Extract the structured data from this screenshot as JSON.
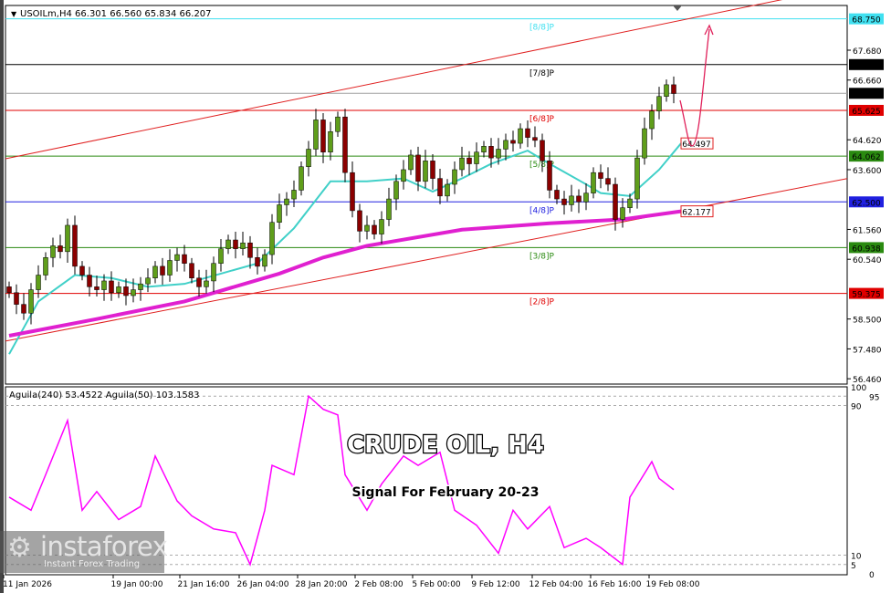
{
  "header": {
    "symbol_info": "USOILm,H4  66.301 66.560 65.834 66.207",
    "indicator_info": "Aguila(240) 53.4522  Aguila(50) 103.1583"
  },
  "overlay": {
    "title": "CRUDE OIL, H4",
    "subtitle": "Signal For February 20-23"
  },
  "watermark": {
    "brand": "instaforex",
    "tagline": "Instant Forex Trading"
  },
  "colors": {
    "bull": "#5f9e1a",
    "bear": "#8b0000",
    "ma_fast": "#40d0c8",
    "ma_slow": "#e020d0",
    "channel": "#e02020",
    "oscillator": "#ff00ff",
    "arrow": "#e0205a"
  },
  "chart_data": [
    {
      "type": "candlestick",
      "symbol": "USOILm",
      "timeframe": "H4",
      "ylim": [
        56.46,
        68.75
      ],
      "price_ticks": [
        "67.680",
        "66.660",
        "64.620",
        "63.600",
        "61.560",
        "60.540",
        "58.500",
        "57.480",
        "56.460"
      ],
      "time_ticks": [
        "11 Jan 2026",
        "19 Jan 00:00",
        "21 Jan 16:00",
        "26 Jan 04:00",
        "28 Jan 20:00",
        "2 Feb 08:00",
        "5 Feb 00:00",
        "9 Feb 12:00",
        "12 Feb 04:00",
        "16 Feb 16:00",
        "19 Feb 08:00"
      ],
      "closes": [
        59.4,
        59.0,
        58.7,
        59.5,
        60.0,
        60.6,
        61.0,
        60.8,
        61.7,
        60.3,
        60.0,
        59.6,
        59.5,
        59.8,
        59.4,
        59.6,
        59.3,
        59.5,
        59.7,
        59.9,
        60.3,
        60.0,
        60.5,
        60.7,
        60.4,
        59.9,
        59.6,
        59.8,
        60.4,
        60.9,
        61.2,
        60.9,
        61.1,
        60.6,
        60.3,
        60.7,
        61.8,
        62.4,
        62.6,
        62.9,
        63.7,
        64.3,
        65.3,
        64.2,
        64.9,
        65.4,
        63.5,
        62.2,
        61.5,
        61.7,
        61.4,
        61.9,
        62.6,
        63.2,
        63.6,
        64.1,
        63.2,
        63.9,
        63.3,
        62.7,
        63.1,
        63.6,
        64.0,
        63.8,
        64.2,
        64.4,
        64.0,
        64.3,
        64.6,
        64.5,
        65.0,
        64.7,
        64.6,
        63.9,
        62.9,
        62.6,
        62.4,
        62.7,
        62.5,
        62.8,
        63.5,
        63.3,
        63.1,
        61.9,
        62.3,
        62.6,
        64.0,
        65.0,
        65.6,
        66.1,
        66.5,
        66.2
      ],
      "current_price": "66.207",
      "murrey_levels": [
        {
          "label": "[8/8]P",
          "value": "68.750",
          "color": "#40e0f0"
        },
        {
          "label": "[7/8]P",
          "value": "67.188",
          "color": "#000000"
        },
        {
          "label": "[6/8]P",
          "value": "65.625",
          "color": "#e00000"
        },
        {
          "label": "[5/8]P",
          "value": "64.062",
          "color": "#2a8a10"
        },
        {
          "label": "[4/8]P",
          "value": "62.500",
          "color": "#2020e0"
        },
        {
          "label": "[3/8]P",
          "value": "60.938",
          "color": "#2a8a10"
        },
        {
          "label": "[2/8]P",
          "value": "59.375",
          "color": "#e00000"
        }
      ],
      "ma_fast": {
        "points": [
          [
            0,
            57.3
          ],
          [
            4,
            59.1
          ],
          [
            9,
            60.0
          ],
          [
            14,
            59.9
          ],
          [
            19,
            59.6
          ],
          [
            24,
            59.7
          ],
          [
            29,
            60.05
          ],
          [
            34,
            60.4
          ],
          [
            39,
            61.6
          ],
          [
            44,
            63.2
          ],
          [
            49,
            63.2
          ],
          [
            54,
            63.3
          ],
          [
            58,
            62.85
          ],
          [
            62,
            63.3
          ],
          [
            66,
            63.8
          ],
          [
            71,
            64.25
          ],
          [
            74,
            63.8
          ],
          [
            79,
            63.1
          ],
          [
            81,
            62.8
          ],
          [
            85,
            62.7
          ],
          [
            89,
            63.6
          ],
          [
            92,
            64.497
          ]
        ],
        "label": "64.497"
      },
      "ma_slow": {
        "points": [
          [
            0,
            57.93
          ],
          [
            12,
            58.5
          ],
          [
            24,
            59.1
          ],
          [
            37,
            60.05
          ],
          [
            43,
            60.6
          ],
          [
            49,
            61.0
          ],
          [
            62,
            61.55
          ],
          [
            74,
            61.77
          ],
          [
            84,
            61.9
          ],
          [
            92,
            62.177
          ]
        ],
        "label": "62.177"
      },
      "channel_upper": [
        [
          0,
          64.0
        ],
        [
          92,
          68.7
        ]
      ],
      "channel_lower": [
        [
          0,
          57.77
        ],
        [
          92,
          62.2
        ]
      ]
    },
    {
      "type": "line",
      "name": "Aguila",
      "ylim": [
        0,
        100
      ],
      "levels": [
        "100",
        "95",
        "90",
        "10",
        "5",
        "0"
      ],
      "points": [
        [
          0,
          41
        ],
        [
          3,
          34
        ],
        [
          5,
          53
        ],
        [
          8,
          82
        ],
        [
          10,
          34
        ],
        [
          12,
          44
        ],
        [
          15,
          29
        ],
        [
          18,
          36
        ],
        [
          20,
          63
        ],
        [
          23,
          39
        ],
        [
          25,
          31
        ],
        [
          28,
          24
        ],
        [
          31,
          22
        ],
        [
          33,
          5
        ],
        [
          35,
          34
        ],
        [
          36,
          58
        ],
        [
          39,
          53
        ],
        [
          41,
          95
        ],
        [
          43,
          88
        ],
        [
          45,
          85
        ],
        [
          46,
          53
        ],
        [
          49,
          34
        ],
        [
          51,
          48
        ],
        [
          54,
          63
        ],
        [
          56,
          58
        ],
        [
          59,
          65
        ],
        [
          61,
          34
        ],
        [
          64,
          26
        ],
        [
          67,
          11
        ],
        [
          69,
          34
        ],
        [
          71,
          24
        ],
        [
          74,
          36
        ],
        [
          76,
          14
        ],
        [
          79,
          19
        ],
        [
          81,
          14
        ],
        [
          84,
          5
        ],
        [
          85,
          41
        ],
        [
          88,
          60
        ],
        [
          89,
          51
        ],
        [
          91,
          45
        ]
      ]
    }
  ]
}
